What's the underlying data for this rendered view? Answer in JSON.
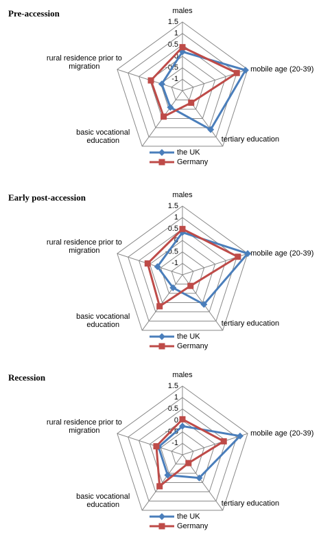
{
  "chart_data": [
    {
      "type": "radar",
      "title": "Pre-accession",
      "categories": [
        "males",
        "mobile age (20-39)",
        "tertiary education",
        "basic vocational education",
        "rural residence prior to migration"
      ],
      "series": [
        {
          "name": "the UK",
          "color": "#4a7ebb",
          "values": [
            0.2,
            1.4,
            0.6,
            -0.6,
            -0.55
          ]
        },
        {
          "name": "Germany",
          "color": "#be4b48",
          "values": [
            0.4,
            1.0,
            -0.85,
            -0.1,
            -0.05
          ]
        }
      ],
      "ylim": [
        -1.5,
        1.5
      ],
      "yticks": [
        -1,
        -0.5,
        0,
        0.5,
        1,
        1.5
      ],
      "grid": true
    },
    {
      "type": "radar",
      "title": "Early post-accession",
      "categories": [
        "males",
        "mobile age (20-39)",
        "tertiary education",
        "basic vocational education",
        "rural residence prior to migration"
      ],
      "series": [
        {
          "name": "the UK",
          "color": "#4a7ebb",
          "values": [
            0.35,
            1.5,
            0.1,
            -0.8,
            -0.35
          ]
        },
        {
          "name": "Germany",
          "color": "#be4b48",
          "values": [
            0.5,
            1.05,
            -0.9,
            0.2,
            0.1
          ]
        }
      ],
      "ylim": [
        -1.5,
        1.5
      ],
      "yticks": [
        -1,
        -0.5,
        0,
        0.5,
        1,
        1.5
      ],
      "grid": true
    },
    {
      "type": "radar",
      "title": "Recession",
      "categories": [
        "males",
        "mobile age (20-39)",
        "tertiary education",
        "basic vocational education",
        "rural residence prior to migration"
      ],
      "series": [
        {
          "name": "the UK",
          "color": "#4a7ebb",
          "values": [
            -0.25,
            1.15,
            -0.25,
            -0.4,
            -0.4
          ]
        },
        {
          "name": "Germany",
          "color": "#be4b48",
          "values": [
            0.05,
            0.4,
            -1.05,
            0.2,
            -0.3
          ]
        }
      ],
      "ylim": [
        -1.5,
        1.5
      ],
      "yticks": [
        -1,
        -0.5,
        0,
        0.5,
        1,
        1.5
      ],
      "grid": true
    }
  ]
}
